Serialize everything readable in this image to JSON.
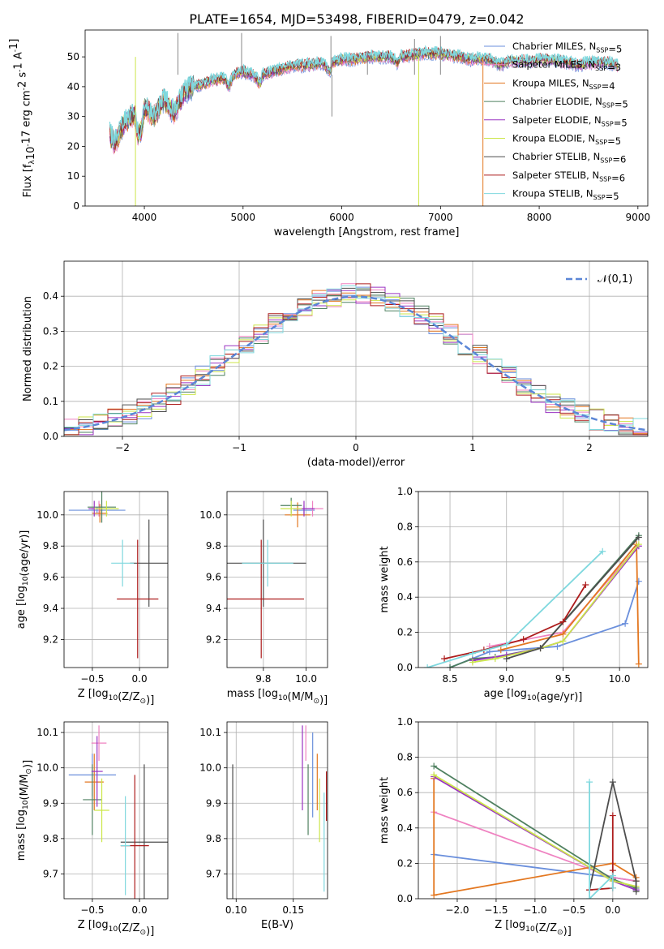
{
  "title": "PLATE=1654, MJD=53498, FIBERID=0479, z=0.042",
  "series": [
    {
      "name": "Chabrier MILES, N$_{SSP}$=5",
      "lib": "Chabrier MILES",
      "nssp": "5",
      "color": "#6a8fdc"
    },
    {
      "name": "Salpeter MILES, N$_{SSP}$=3",
      "lib": "Salpeter MILES",
      "nssp": "3",
      "color": "#ef82c1"
    },
    {
      "name": "Kroupa MILES, N$_{SSP}$=4",
      "lib": "Kroupa MILES",
      "nssp": "4",
      "color": "#e37720"
    },
    {
      "name": "Chabrier ELODIE, N$_{SSP}$=5",
      "lib": "Chabrier ELODIE",
      "nssp": "5",
      "color": "#4f8060"
    },
    {
      "name": "Salpeter ELODIE, N$_{SSP}$=5",
      "lib": "Salpeter ELODIE",
      "nssp": "5",
      "color": "#9a33c2"
    },
    {
      "name": "Kroupa ELODIE, N$_{SSP}$=5",
      "lib": "Kroupa ELODIE",
      "nssp": "5",
      "color": "#cce64a"
    },
    {
      "name": "Chabrier STELIB, N$_{SSP}$=6",
      "lib": "Chabrier STELIB",
      "nssp": "6",
      "color": "#4d4d4d"
    },
    {
      "name": "Salpeter STELIB, N$_{SSP}$=6",
      "lib": "Salpeter STELIB",
      "nssp": "6",
      "color": "#ad1c1c"
    },
    {
      "name": "Kroupa STELIB, N$_{SSP}$=5",
      "lib": "Kroupa STELIB",
      "nssp": "5",
      "color": "#7fd8de"
    }
  ],
  "chart_data": [
    {
      "type": "line",
      "panel": "spectrum",
      "xlabel": "wavelength [Angstrom, rest frame]",
      "ylabel": "Flux [f_λ10^-17 erg cm^-2 s^-1 A^-1]",
      "xlim": [
        3400,
        9100
      ],
      "ylim": [
        0,
        59
      ],
      "xticks": [
        4000,
        5000,
        6000,
        7000,
        8000,
        9000
      ],
      "yticks": [
        0,
        10,
        20,
        30,
        40,
        50
      ],
      "x": [
        3650,
        3700,
        3800,
        3900,
        3930,
        3970,
        4000,
        4100,
        4200,
        4300,
        4400,
        4500,
        4600,
        4700,
        4800,
        4860,
        4900,
        5000,
        5100,
        5175,
        5200,
        5300,
        5400,
        5500,
        5600,
        5700,
        5800,
        5890,
        5900,
        6000,
        6100,
        6200,
        6300,
        6400,
        6500,
        6563,
        6600,
        6700,
        6800,
        6900,
        7000,
        7100,
        7200,
        7300,
        7400,
        7500,
        7600,
        7700,
        7800,
        7900,
        8000,
        8100,
        8200,
        8300,
        8400,
        8500,
        8600,
        8700,
        8800
      ],
      "y": [
        24,
        21,
        28,
        31,
        24,
        25,
        33,
        30,
        36,
        31,
        38,
        40,
        41,
        42,
        43,
        40,
        44,
        45,
        44,
        41,
        44,
        45,
        46,
        47,
        47,
        47.5,
        48,
        45,
        48,
        49,
        49,
        49.5,
        50,
        50,
        50,
        48,
        50,
        50.5,
        51,
        51,
        51,
        50.5,
        50,
        49,
        49.5,
        49,
        47,
        48.5,
        48.5,
        48.5,
        49,
        49,
        48.5,
        48,
        47,
        48,
        48,
        48,
        47
      ],
      "spikes": [
        {
          "x": 3910,
          "y": 0
        },
        {
          "x": 6780,
          "y": 0
        },
        {
          "x": 7430,
          "y": 0
        },
        {
          "x": 4340,
          "y": 58
        },
        {
          "x": 4985,
          "y": 58
        },
        {
          "x": 5890,
          "y": 57
        },
        {
          "x": 6737,
          "y": 56
        },
        {
          "x": 5900,
          "y": 30
        },
        {
          "x": 6260,
          "y": 52
        },
        {
          "x": 7000,
          "y": 57
        }
      ]
    },
    {
      "type": "line",
      "panel": "residuals",
      "xlabel": "(data-model)/error",
      "ylabel": "Normed distribution",
      "xlim": [
        -2.5,
        2.5
      ],
      "ylim": [
        0,
        0.5
      ],
      "xticks": [
        -2,
        -1,
        0,
        1,
        2
      ],
      "yticks": [
        0.0,
        0.1,
        0.2,
        0.3,
        0.4
      ],
      "legend": "$\\mathcal{N}(0,1)$",
      "legend_loc": "upper right",
      "bins": 40
    },
    {
      "type": "scatter",
      "panel": "age_vs_Z",
      "xlabel": "Z [log$_{10}$(Z/Z$_\\odot$)]",
      "ylabel": "age  [log$_{10}$(age/yr)]",
      "xlim": [
        -0.8,
        0.3
      ],
      "ylim": [
        9.02,
        10.15
      ],
      "xticks": [
        -0.5,
        0.0
      ],
      "yticks": [
        9.2,
        9.4,
        9.6,
        9.8,
        10.0
      ],
      "points": [
        {
          "s": 0,
          "x": -0.45,
          "y": 10.03,
          "xerr": 0.3,
          "yerr": 0.02
        },
        {
          "s": 1,
          "x": -0.43,
          "y": 10.04,
          "xerr": 0.08,
          "yerr": 0.05
        },
        {
          "s": 2,
          "x": -0.42,
          "y": 10.01,
          "xerr": 0.08,
          "yerr": 0.06
        },
        {
          "s": 3,
          "x": -0.4,
          "y": 10.05,
          "xerr": 0.15,
          "yerr": 0.1
        },
        {
          "s": 4,
          "x": -0.48,
          "y": 10.04,
          "xerr": 0.06,
          "yerr": 0.05
        },
        {
          "s": 5,
          "x": -0.35,
          "y": 10.04,
          "xerr": 0.13,
          "yerr": 0.05
        },
        {
          "s": 6,
          "x": 0.1,
          "y": 9.69,
          "xerr": 0.2,
          "yerr": 0.28
        },
        {
          "s": 7,
          "x": -0.02,
          "y": 9.46,
          "xerr": 0.22,
          "yerr": 0.38
        },
        {
          "s": 8,
          "x": -0.18,
          "y": 9.69,
          "xerr": 0.12,
          "yerr": 0.15
        }
      ]
    },
    {
      "type": "scatter",
      "panel": "age_vs_mass",
      "xlabel": "mass [log$_{10}$(M/M$_\\odot$)]",
      "ylabel": "",
      "xlim": [
        9.63,
        10.1
      ],
      "ylim": [
        9.02,
        10.15
      ],
      "xticks": [
        9.8,
        10.0
      ],
      "yticks": [
        9.2,
        9.4,
        9.6,
        9.8,
        10.0
      ],
      "points": [
        {
          "s": 0,
          "x": 9.99,
          "y": 10.03,
          "xerr": 0.05,
          "yerr": 0.03
        },
        {
          "s": 1,
          "x": 10.03,
          "y": 10.04,
          "xerr": 0.05,
          "yerr": 0.05
        },
        {
          "s": 2,
          "x": 9.96,
          "y": 10.0,
          "xerr": 0.06,
          "yerr": 0.08
        },
        {
          "s": 3,
          "x": 9.93,
          "y": 10.06,
          "xerr": 0.05,
          "yerr": 0.05
        },
        {
          "s": 4,
          "x": 9.99,
          "y": 10.04,
          "xerr": 0.05,
          "yerr": 0.05
        },
        {
          "s": 5,
          "x": 9.93,
          "y": 10.04,
          "xerr": 0.05,
          "yerr": 0.05
        },
        {
          "s": 6,
          "x": 9.8,
          "y": 9.69,
          "xerr": 0.2,
          "yerr": 0.28
        },
        {
          "s": 7,
          "x": 9.79,
          "y": 9.46,
          "xerr": 0.2,
          "yerr": 0.38
        },
        {
          "s": 8,
          "x": 9.82,
          "y": 9.69,
          "xerr": 0.12,
          "yerr": 0.15
        }
      ]
    },
    {
      "type": "line",
      "panel": "mass_weight_vs_age",
      "xlabel": "age  [log$_{10}$(age/yr)]",
      "ylabel": "mass weight",
      "xlim": [
        8.22,
        10.25
      ],
      "ylim": [
        0,
        1
      ],
      "xticks": [
        8.5,
        9.0,
        9.5,
        10.0
      ],
      "yticks": [
        0.0,
        0.2,
        0.4,
        0.6,
        0.8,
        1.0
      ],
      "lines": [
        {
          "s": 0,
          "x": [
            8.5,
            8.85,
            9.45,
            10.05,
            10.17
          ],
          "y": [
            0.0,
            0.09,
            0.12,
            0.25,
            0.49
          ]
        },
        {
          "s": 1,
          "x": [
            8.85,
            9.5,
            10.15
          ],
          "y": [
            0.12,
            0.2,
            0.68
          ]
        },
        {
          "s": 2,
          "x": [
            8.95,
            9.5,
            10.15,
            10.17
          ],
          "y": [
            0.1,
            0.19,
            0.7,
            0.02
          ]
        },
        {
          "s": 3,
          "x": [
            8.5,
            8.7,
            8.9,
            9.3,
            10.17
          ],
          "y": [
            0.0,
            0.05,
            0.06,
            0.11,
            0.75
          ]
        },
        {
          "s": 4,
          "x": [
            8.7,
            9.0,
            9.3,
            9.5,
            10.17
          ],
          "y": [
            0.04,
            0.07,
            0.11,
            0.15,
            0.69
          ]
        },
        {
          "s": 5,
          "x": [
            8.7,
            8.9,
            9.3,
            9.5,
            10.17
          ],
          "y": [
            0.03,
            0.05,
            0.11,
            0.15,
            0.7
          ]
        },
        {
          "s": 6,
          "x": [
            9.0,
            9.3,
            10.17
          ],
          "y": [
            0.05,
            0.11,
            0.74
          ]
        },
        {
          "s": 7,
          "x": [
            8.45,
            8.8,
            9.15,
            9.5,
            9.7
          ],
          "y": [
            0.05,
            0.1,
            0.16,
            0.26,
            0.47
          ]
        },
        {
          "s": 8,
          "x": [
            8.3,
            8.7,
            9.0,
            9.85
          ],
          "y": [
            0.0,
            0.08,
            0.13,
            0.66
          ]
        }
      ]
    },
    {
      "type": "scatter",
      "panel": "mass_vs_Z",
      "xlabel": "Z [log$_{10}$(Z/Z$_\\odot$)]",
      "ylabel": "mass [log$_{10}$(M/M$_\\odot$)]",
      "xlim": [
        -0.8,
        0.3
      ],
      "ylim": [
        9.63,
        10.13
      ],
      "xticks": [
        -0.5,
        0.0
      ],
      "yticks": [
        9.7,
        9.8,
        9.9,
        10.0,
        10.1
      ],
      "points": [
        {
          "s": 0,
          "x": -0.5,
          "y": 9.98,
          "xerr": 0.25,
          "yerr": 0.06
        },
        {
          "s": 1,
          "x": -0.43,
          "y": 10.07,
          "xerr": 0.08,
          "yerr": 0.05
        },
        {
          "s": 2,
          "x": -0.48,
          "y": 9.96,
          "xerr": 0.1,
          "yerr": 0.08
        },
        {
          "s": 3,
          "x": -0.5,
          "y": 9.91,
          "xerr": 0.1,
          "yerr": 0.1
        },
        {
          "s": 4,
          "x": -0.45,
          "y": 9.99,
          "xerr": 0.06,
          "yerr": 0.1
        },
        {
          "s": 5,
          "x": -0.4,
          "y": 9.88,
          "xerr": 0.08,
          "yerr": 0.09
        },
        {
          "s": 6,
          "x": 0.05,
          "y": 9.79,
          "xerr": 0.25,
          "yerr": 0.22
        },
        {
          "s": 7,
          "x": -0.05,
          "y": 9.78,
          "xerr": 0.15,
          "yerr": 0.2
        },
        {
          "s": 8,
          "x": -0.15,
          "y": 9.78,
          "xerr": 0.05,
          "yerr": 0.14
        }
      ]
    },
    {
      "type": "scatter",
      "panel": "mass_vs_EBV",
      "xlabel": "E(B-V)",
      "ylabel": "",
      "xlim": [
        0.092,
        0.18
      ],
      "ylim": [
        9.63,
        10.13
      ],
      "xticks": [
        0.1,
        0.15
      ],
      "yticks": [
        9.7,
        9.8,
        9.9,
        10.0,
        10.1
      ],
      "points": [
        {
          "s": 0,
          "x": 0.167,
          "y": 9.98,
          "yerr": 0.12
        },
        {
          "s": 1,
          "x": 0.161,
          "y": 10.07,
          "yerr": 0.05
        },
        {
          "s": 2,
          "x": 0.171,
          "y": 9.96,
          "yerr": 0.08
        },
        {
          "s": 3,
          "x": 0.163,
          "y": 9.91,
          "yerr": 0.1
        },
        {
          "s": 4,
          "x": 0.158,
          "y": 10.0,
          "yerr": 0.12
        },
        {
          "s": 5,
          "x": 0.173,
          "y": 9.88,
          "yerr": 0.09
        },
        {
          "s": 6,
          "x": 0.097,
          "y": 9.79,
          "yerr": 0.22
        },
        {
          "s": 7,
          "x": 0.179,
          "y": 9.92,
          "yerr": 0.07
        },
        {
          "s": 8,
          "x": 0.177,
          "y": 9.79,
          "yerr": 0.14
        }
      ]
    },
    {
      "type": "line",
      "panel": "mass_weight_vs_Z",
      "xlabel": "Z [log$_{10}$(Z/Z$_\\odot$)]",
      "ylabel": "mass weight",
      "xlim": [
        -2.5,
        0.45
      ],
      "ylim": [
        0,
        1
      ],
      "xticks": [
        -2.0,
        -1.5,
        -1.0,
        -0.5,
        0.0
      ],
      "yticks": [
        0.0,
        0.2,
        0.4,
        0.6,
        0.8,
        1.0
      ],
      "lines": [
        {
          "s": 0,
          "x": [
            -2.3,
            0.0,
            0.3,
            0.3
          ],
          "y": [
            0.25,
            0.12,
            0.1,
            0.05
          ]
        },
        {
          "s": 1,
          "x": [
            -2.3,
            0.0,
            0.3
          ],
          "y": [
            0.49,
            0.12,
            0.1
          ]
        },
        {
          "s": 2,
          "x": [
            -2.3,
            -2.3,
            0.0,
            0.3,
            0.3
          ],
          "y": [
            0.68,
            0.02,
            0.2,
            0.12,
            0.1
          ]
        },
        {
          "s": 3,
          "x": [
            -2.3,
            0.0,
            0.3,
            0.3
          ],
          "y": [
            0.75,
            0.11,
            0.06,
            0.05
          ]
        },
        {
          "s": 4,
          "x": [
            -2.3,
            0.0,
            0.3
          ],
          "y": [
            0.69,
            0.1,
            0.05
          ]
        },
        {
          "s": 5,
          "x": [
            -2.3,
            0.0,
            0.3
          ],
          "y": [
            0.7,
            0.1,
            0.07
          ]
        },
        {
          "s": 6,
          "x": [
            -0.3,
            0.0,
            0.3,
            0.3
          ],
          "y": [
            0.05,
            0.66,
            0.1,
            0.04
          ]
        },
        {
          "s": 7,
          "x": [
            -0.3,
            0.0,
            0.0,
            0.0
          ],
          "y": [
            0.05,
            0.06,
            0.47,
            0.16
          ]
        },
        {
          "s": 8,
          "x": [
            -0.3,
            -0.3,
            0.0,
            0.0
          ],
          "y": [
            0.66,
            0.0,
            0.13,
            0.06
          ]
        }
      ]
    }
  ]
}
